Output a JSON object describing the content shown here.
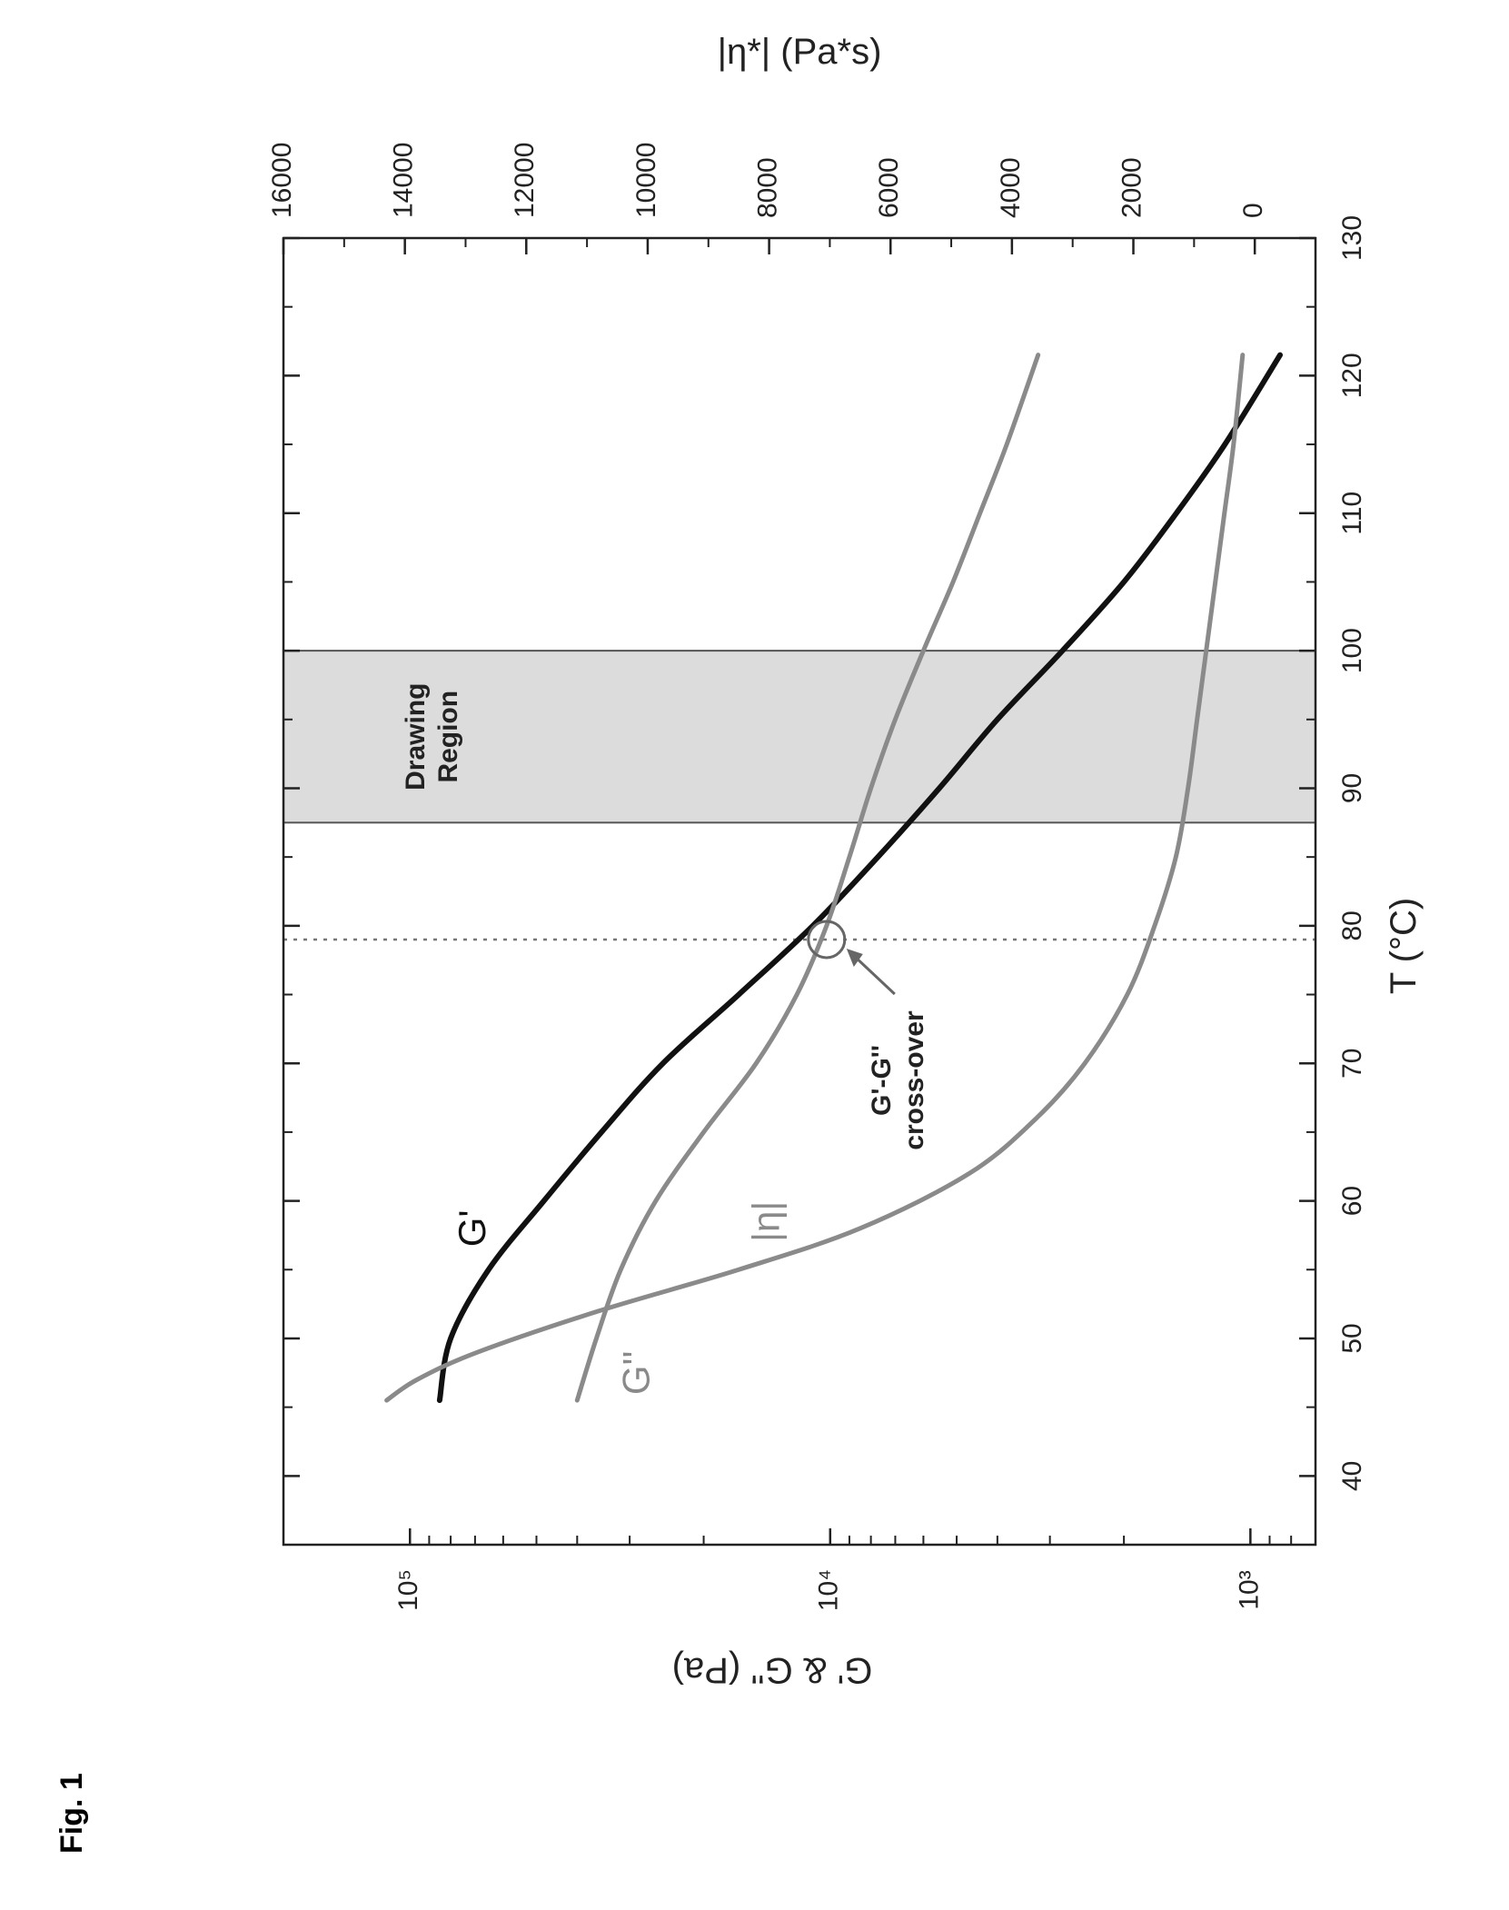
{
  "figure_label": "Fig. 1",
  "chart_data": {
    "type": "line",
    "rotated": "90deg-counterclockwise",
    "xlabel": "T (°C)",
    "x_range": [
      35,
      130
    ],
    "x_ticks": [
      40,
      50,
      60,
      70,
      80,
      90,
      100,
      110,
      120,
      130
    ],
    "ylabel_left": "G' & G'' (Pa)",
    "y_left_scale": "log",
    "y_left_range": [
      700,
      200000
    ],
    "y_left_ticks": [
      {
        "value": 1000,
        "label": "10³"
      },
      {
        "value": 10000,
        "label": "10⁴"
      },
      {
        "value": 100000,
        "label": "10⁵"
      }
    ],
    "ylabel_right": "|η*| (Pa*s)",
    "y_right_range": [
      -1000,
      16000
    ],
    "y_right_ticks": [
      0,
      2000,
      4000,
      6000,
      8000,
      10000,
      12000,
      14000,
      16000
    ],
    "grid": false,
    "series": [
      {
        "name": "G'",
        "axis": "left",
        "color": "#111111",
        "x": [
          45.5,
          50,
          55,
          60,
          65,
          70,
          75,
          80,
          85,
          90,
          95,
          100,
          105,
          110,
          115,
          121.5
        ],
        "y": [
          85000,
          80000,
          65000,
          48000,
          35000,
          25000,
          16500,
          11000,
          7700,
          5500,
          4000,
          2800,
          2000,
          1500,
          1150,
          850
        ]
      },
      {
        "name": "G''",
        "axis": "left",
        "color": "#8a8a8a",
        "x": [
          45.5,
          50,
          55,
          60,
          65,
          70,
          75,
          80,
          85,
          90,
          95,
          100,
          105,
          110,
          115,
          121.5
        ],
        "y": [
          40000,
          36000,
          31500,
          26000,
          20000,
          15000,
          12000,
          10200,
          9000,
          8000,
          7000,
          6000,
          5100,
          4400,
          3800,
          3200
        ]
      },
      {
        "name": "|η|",
        "axis": "right",
        "color": "#8a8a8a",
        "x": [
          45.5,
          47,
          49,
          52,
          55,
          58,
          62,
          66,
          70,
          75,
          80,
          85,
          90,
          95,
          100,
          105,
          110,
          115,
          121.5
        ],
        "y": [
          14300,
          13800,
          12800,
          10800,
          8500,
          6500,
          4700,
          3600,
          2800,
          2100,
          1650,
          1300,
          1100,
          950,
          800,
          650,
          500,
          350,
          200
        ]
      }
    ],
    "annotations": [
      {
        "type": "band",
        "x_from": 87.5,
        "x_to": 100,
        "label": "Drawing Region"
      },
      {
        "type": "vline",
        "x": 79,
        "style": "dotted"
      },
      {
        "type": "circle",
        "x": 79,
        "y": 10200,
        "label": "G'-G'' cross-over"
      }
    ],
    "series_labels": [
      {
        "text": "G'",
        "x": 58,
        "y": 70000,
        "color": "#111111"
      },
      {
        "text": "G''",
        "x": 47.5,
        "y": 28500,
        "color": "#8a8a8a"
      },
      {
        "text": "|η|",
        "x": 58.5,
        "y": 14000,
        "color": "#8a8a8a"
      }
    ]
  }
}
